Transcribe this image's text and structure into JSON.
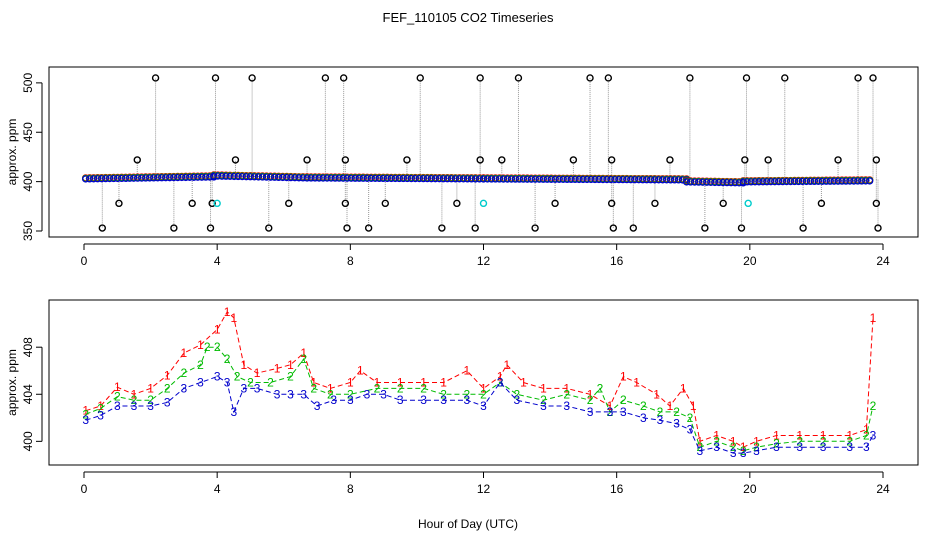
{
  "chart_data": {
    "title": "FEF_110105  CO2 Timeseries",
    "xlabel": "Hour of Day (UTC)",
    "colors": {
      "series1": "#ff0000",
      "series2": "#00bb00",
      "series3": "#0000cc",
      "hilow": "#000000",
      "cyan": "#00cccc"
    },
    "panels": [
      {
        "id": "top",
        "type": "scatter",
        "ylabel": "approx. ppm",
        "xlim": [
          0,
          24
        ],
        "ylim": [
          350,
          510
        ],
        "xticks": [
          0,
          4,
          8,
          12,
          16,
          20,
          24
        ],
        "yticks": [
          350,
          400,
          450,
          500
        ],
        "baseline_segments": [
          {
            "x0": 0.05,
            "x1": 3.9,
            "y0": 403,
            "y1": 405
          },
          {
            "x0": 3.9,
            "x1": 6.7,
            "y0": 406,
            "y1": 404
          },
          {
            "x0": 6.7,
            "x1": 12.0,
            "y0": 404,
            "y1": 403
          },
          {
            "x0": 12.0,
            "x1": 18.1,
            "y0": 403,
            "y1": 402
          },
          {
            "x0": 18.1,
            "x1": 19.8,
            "y0": 400,
            "y1": 399
          },
          {
            "x0": 19.8,
            "x1": 23.6,
            "y0": 400,
            "y1": 401
          }
        ],
        "high_points": [
          2.15,
          3.95,
          5.05,
          7.25,
          7.8,
          10.1,
          11.9,
          13.05,
          15.2,
          15.75,
          18.2,
          19.9,
          21.05,
          23.25,
          23.7
        ],
        "mid_points": [
          1.6,
          4.55,
          6.7,
          7.85,
          9.7,
          11.9,
          12.55,
          14.7,
          15.85,
          17.6,
          19.85,
          20.55,
          22.65,
          23.8
        ],
        "low350_points": [
          0.55,
          2.7,
          3.8,
          5.55,
          7.9,
          8.55,
          10.75,
          11.75,
          13.55,
          15.9,
          16.5,
          18.65,
          19.75,
          21.6,
          23.85
        ],
        "low378_points": [
          1.05,
          3.25,
          3.85,
          6.15,
          7.85,
          9.05,
          11.2,
          14.15,
          15.85,
          17.15,
          19.2,
          22.15,
          23.8
        ],
        "cyan_points": [
          {
            "x": 4.0,
            "y": 378
          },
          {
            "x": 12.0,
            "y": 378
          },
          {
            "x": 19.95,
            "y": 378
          }
        ]
      },
      {
        "id": "bottom",
        "type": "line",
        "ylabel": "approx. ppm",
        "xlim": [
          0,
          24
        ],
        "ylim": [
          398.5,
          411.5
        ],
        "xticks": [
          0,
          4,
          8,
          12,
          16,
          20,
          24
        ],
        "yticks": [
          400,
          404,
          408
        ],
        "series": [
          {
            "name": "1",
            "points": [
              [
                0.05,
                402.6
              ],
              [
                0.5,
                403.0
              ],
              [
                1.0,
                404.6
              ],
              [
                1.5,
                404.0
              ],
              [
                2.0,
                404.5
              ],
              [
                2.5,
                405.6
              ],
              [
                3.0,
                407.5
              ],
              [
                3.5,
                408.2
              ],
              [
                4.0,
                409.5
              ],
              [
                4.3,
                411.0
              ],
              [
                4.5,
                410.5
              ],
              [
                4.8,
                406.5
              ],
              [
                5.2,
                405.8
              ],
              [
                5.8,
                406.2
              ],
              [
                6.2,
                406.5
              ],
              [
                6.6,
                407.5
              ],
              [
                6.9,
                405.0
              ],
              [
                7.4,
                404.5
              ],
              [
                8.0,
                405.0
              ],
              [
                8.3,
                406.0
              ],
              [
                8.8,
                405.0
              ],
              [
                9.5,
                405.0
              ],
              [
                10.2,
                405.0
              ],
              [
                10.8,
                405.0
              ],
              [
                11.5,
                406.0
              ],
              [
                12.0,
                404.5
              ],
              [
                12.5,
                405.5
              ],
              [
                12.7,
                406.5
              ],
              [
                13.2,
                405.0
              ],
              [
                13.8,
                404.5
              ],
              [
                14.5,
                404.5
              ],
              [
                15.2,
                404.0
              ],
              [
                15.8,
                403.0
              ],
              [
                16.2,
                405.5
              ],
              [
                16.6,
                405.0
              ],
              [
                17.2,
                404.0
              ],
              [
                17.6,
                403.0
              ],
              [
                18.0,
                404.5
              ],
              [
                18.3,
                403.0
              ],
              [
                18.5,
                400.0
              ],
              [
                19.0,
                400.5
              ],
              [
                19.5,
                400.0
              ],
              [
                19.8,
                399.5
              ],
              [
                20.2,
                400.0
              ],
              [
                20.8,
                400.5
              ],
              [
                21.5,
                400.5
              ],
              [
                22.2,
                400.5
              ],
              [
                23.0,
                400.5
              ],
              [
                23.5,
                401.0
              ],
              [
                23.7,
                410.5
              ]
            ]
          },
          {
            "name": "2",
            "points": [
              [
                0.05,
                402.3
              ],
              [
                0.5,
                402.8
              ],
              [
                1.0,
                403.8
              ],
              [
                1.5,
                403.5
              ],
              [
                2.0,
                403.5
              ],
              [
                2.5,
                404.5
              ],
              [
                3.0,
                405.8
              ],
              [
                3.5,
                406.5
              ],
              [
                3.7,
                408.0
              ],
              [
                4.0,
                408.0
              ],
              [
                4.3,
                407.0
              ],
              [
                4.6,
                405.5
              ],
              [
                5.0,
                405.0
              ],
              [
                5.6,
                405.0
              ],
              [
                6.2,
                405.5
              ],
              [
                6.6,
                407.0
              ],
              [
                6.9,
                404.5
              ],
              [
                7.4,
                404.0
              ],
              [
                8.0,
                404.0
              ],
              [
                8.8,
                404.5
              ],
              [
                9.5,
                404.5
              ],
              [
                10.2,
                404.5
              ],
              [
                10.8,
                404.0
              ],
              [
                11.5,
                404.0
              ],
              [
                12.0,
                404.0
              ],
              [
                12.5,
                405.0
              ],
              [
                13.0,
                404.0
              ],
              [
                13.8,
                403.5
              ],
              [
                14.5,
                404.0
              ],
              [
                15.2,
                403.5
              ],
              [
                15.5,
                404.5
              ],
              [
                15.8,
                402.5
              ],
              [
                16.2,
                403.5
              ],
              [
                16.8,
                403.0
              ],
              [
                17.3,
                402.5
              ],
              [
                17.8,
                402.5
              ],
              [
                18.2,
                402.0
              ],
              [
                18.5,
                399.5
              ],
              [
                19.0,
                400.0
              ],
              [
                19.5,
                399.5
              ],
              [
                19.8,
                399.2
              ],
              [
                20.2,
                399.5
              ],
              [
                20.8,
                399.8
              ],
              [
                21.5,
                400.0
              ],
              [
                22.2,
                400.0
              ],
              [
                23.0,
                400.0
              ],
              [
                23.5,
                400.5
              ],
              [
                23.7,
                403.0
              ]
            ]
          },
          {
            "name": "3",
            "points": [
              [
                0.05,
                401.8
              ],
              [
                0.5,
                402.2
              ],
              [
                1.0,
                403.0
              ],
              [
                1.5,
                403.0
              ],
              [
                2.0,
                403.0
              ],
              [
                2.5,
                403.3
              ],
              [
                3.0,
                404.5
              ],
              [
                3.5,
                405.0
              ],
              [
                4.0,
                405.5
              ],
              [
                4.3,
                405.0
              ],
              [
                4.5,
                402.5
              ],
              [
                4.8,
                404.5
              ],
              [
                5.2,
                404.5
              ],
              [
                5.8,
                404.0
              ],
              [
                6.2,
                404.0
              ],
              [
                6.6,
                404.0
              ],
              [
                7.0,
                403.0
              ],
              [
                7.5,
                403.5
              ],
              [
                8.0,
                403.5
              ],
              [
                8.5,
                404.0
              ],
              [
                9.0,
                404.0
              ],
              [
                9.5,
                403.5
              ],
              [
                10.2,
                403.5
              ],
              [
                10.8,
                403.5
              ],
              [
                11.5,
                403.5
              ],
              [
                12.0,
                403.0
              ],
              [
                12.5,
                405.0
              ],
              [
                13.0,
                403.5
              ],
              [
                13.8,
                403.0
              ],
              [
                14.5,
                403.0
              ],
              [
                15.2,
                402.5
              ],
              [
                15.8,
                402.5
              ],
              [
                16.2,
                402.5
              ],
              [
                16.8,
                402.0
              ],
              [
                17.3,
                401.8
              ],
              [
                17.8,
                401.5
              ],
              [
                18.2,
                401.0
              ],
              [
                18.5,
                399.2
              ],
              [
                19.0,
                399.5
              ],
              [
                19.5,
                399.0
              ],
              [
                19.8,
                399.0
              ],
              [
                20.2,
                399.2
              ],
              [
                20.8,
                399.5
              ],
              [
                21.5,
                399.5
              ],
              [
                22.2,
                399.5
              ],
              [
                23.0,
                399.5
              ],
              [
                23.5,
                399.5
              ],
              [
                23.7,
                400.5
              ]
            ]
          }
        ]
      }
    ]
  }
}
